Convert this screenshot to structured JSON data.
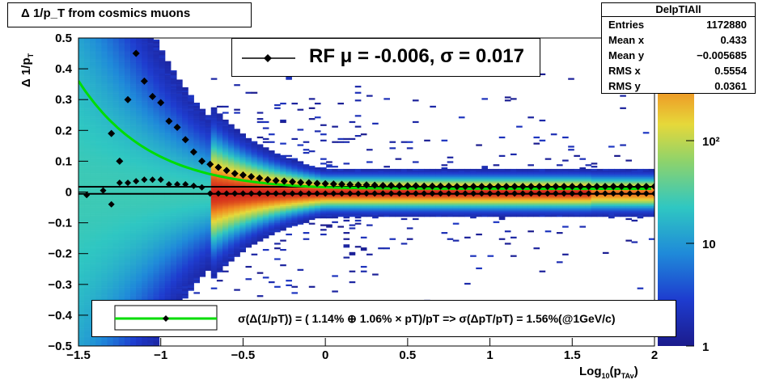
{
  "title": "Δ 1/p_T from cosmics muons",
  "stats": {
    "name": "DelpTIAll",
    "rows": [
      {
        "label": "Entries",
        "value": "1172880"
      },
      {
        "label": "Mean x",
        "value": "0.433"
      },
      {
        "label": "Mean y",
        "value": "−0.005685"
      },
      {
        "label": "RMS x",
        "value": "0.5554"
      },
      {
        "label": "RMS y",
        "value": "0.0361"
      }
    ]
  },
  "legend_top": "RF μ = -0.006, σ =   0.017",
  "legend_bottom": "σ(Δ(1/pT)) = ( 1.14% ⊕  1.06% × pT)/pT => σ(ΔpT/pT) =  1.56%(@1GeV/c)",
  "colors": {
    "fit": "#00dd00",
    "markers": "#000000"
  },
  "chart_data": {
    "type": "heatmap",
    "title": "Δ 1/p_T from cosmics muons",
    "xlabel": "Log10(pTAv)",
    "ylabel": "Δ 1/pT",
    "xlim": [
      -1.5,
      2
    ],
    "ylim": [
      -0.5,
      0.5
    ],
    "x_ticks": [
      -1.5,
      -1,
      -0.5,
      0,
      0.5,
      1,
      1.5,
      2
    ],
    "x_tick_labels": [
      "−1.5",
      "−1",
      "−0.5",
      "0",
      "0.5",
      "1",
      "1.5",
      "2"
    ],
    "y_ticks": [
      -0.5,
      -0.4,
      -0.3,
      -0.2,
      -0.1,
      0,
      0.1,
      0.2,
      0.3,
      0.4,
      0.5
    ],
    "y_tick_labels": [
      "−0.5",
      "−0.4",
      "−0.3",
      "−0.2",
      "−0.1",
      "0",
      "0.1",
      "0.2",
      "0.3",
      "0.4",
      "0.5"
    ],
    "z_scale": "log",
    "zlim": [
      1,
      1000
    ],
    "z_tick_labels": [
      "1",
      "10",
      "10²"
    ],
    "mean_points": {
      "x": [
        -1.45,
        -1.35,
        -1.3,
        -1.25,
        -1.2,
        -1.15,
        -1.1,
        -1.05,
        -1.0,
        -0.95,
        -0.9,
        -0.85,
        -0.8,
        -0.75,
        -0.7,
        -0.65,
        -0.6,
        -0.55,
        -0.5,
        -0.45,
        -0.4,
        -0.35,
        -0.3,
        -0.25,
        -0.2,
        -0.15,
        -0.1,
        -0.05,
        0.0,
        0.05,
        0.1,
        0.15,
        0.2,
        0.25,
        0.3,
        0.35,
        0.4,
        0.45,
        0.5,
        0.55,
        0.6,
        0.65,
        0.7,
        0.75,
        0.8,
        0.85,
        0.9,
        0.95,
        1.0,
        1.05,
        1.1,
        1.15,
        1.2,
        1.25,
        1.3,
        1.35,
        1.4,
        1.45,
        1.5,
        1.55,
        1.6,
        1.65,
        1.7,
        1.75,
        1.8,
        1.85,
        1.9,
        1.95,
        2.0
      ],
      "y": [
        -0.01,
        0.005,
        -0.04,
        0.03,
        0.03,
        0.035,
        0.04,
        0.04,
        0.04,
        0.025,
        0.025,
        0.025,
        0.02,
        0.015,
        -0.005,
        -0.005,
        -0.005,
        -0.005,
        -0.005,
        -0.005,
        -0.005,
        -0.005,
        -0.005,
        -0.005,
        -0.005,
        -0.005,
        -0.005,
        -0.005,
        -0.005,
        -0.005,
        -0.005,
        -0.005,
        -0.005,
        -0.005,
        -0.005,
        -0.005,
        -0.005,
        -0.005,
        -0.005,
        -0.005,
        -0.005,
        -0.005,
        -0.005,
        -0.005,
        -0.005,
        -0.005,
        -0.005,
        -0.005,
        -0.005,
        -0.005,
        -0.005,
        -0.005,
        -0.005,
        -0.005,
        -0.005,
        -0.005,
        -0.005,
        -0.005,
        -0.005,
        -0.005,
        -0.005,
        -0.005,
        -0.005,
        -0.005,
        -0.005,
        -0.005,
        -0.005,
        -0.005,
        -0.005
      ]
    },
    "sigma_points": {
      "x": [
        -1.3,
        -1.25,
        -1.2,
        -1.15,
        -1.1,
        -1.05,
        -1.0,
        -0.95,
        -0.9,
        -0.85,
        -0.8,
        -0.75,
        -0.7,
        -0.65,
        -0.6,
        -0.55,
        -0.5,
        -0.45,
        -0.4,
        -0.35,
        -0.3,
        -0.25,
        -0.2,
        -0.15,
        -0.1,
        -0.05,
        0.0,
        0.05,
        0.1,
        0.15,
        0.2,
        0.25,
        0.3,
        0.35,
        0.4,
        0.45,
        0.5,
        0.55,
        0.6,
        0.65,
        0.7,
        0.75,
        0.8,
        0.85,
        0.9,
        0.95,
        1.0,
        1.05,
        1.1,
        1.15,
        1.2,
        1.25,
        1.3,
        1.35,
        1.4,
        1.45,
        1.5,
        1.55,
        1.6,
        1.65,
        1.7,
        1.75,
        1.8,
        1.85,
        1.9,
        1.95,
        2.0
      ],
      "y": [
        0.19,
        0.1,
        0.3,
        0.45,
        0.36,
        0.31,
        0.29,
        0.23,
        0.21,
        0.17,
        0.13,
        0.1,
        0.09,
        0.08,
        0.07,
        0.06,
        0.055,
        0.05,
        0.045,
        0.04,
        0.037,
        0.035,
        0.033,
        0.031,
        0.03,
        0.028,
        0.027,
        0.026,
        0.025,
        0.024,
        0.023,
        0.023,
        0.022,
        0.021,
        0.021,
        0.02,
        0.02,
        0.02,
        0.019,
        0.019,
        0.019,
        0.019,
        0.018,
        0.018,
        0.018,
        0.018,
        0.018,
        0.018,
        0.018,
        0.018,
        0.018,
        0.018,
        0.018,
        0.018,
        0.018,
        0.018,
        0.018,
        0.018,
        0.018,
        0.018,
        0.018,
        0.018,
        0.018,
        0.018,
        0.018,
        0.018,
        0.018
      ]
    },
    "fit_curve": {
      "a_percent": 1.14,
      "b_percent": 1.06,
      "label": "σ(Δ(1/pT))"
    },
    "hlines": [
      0.017,
      -0.006
    ]
  }
}
